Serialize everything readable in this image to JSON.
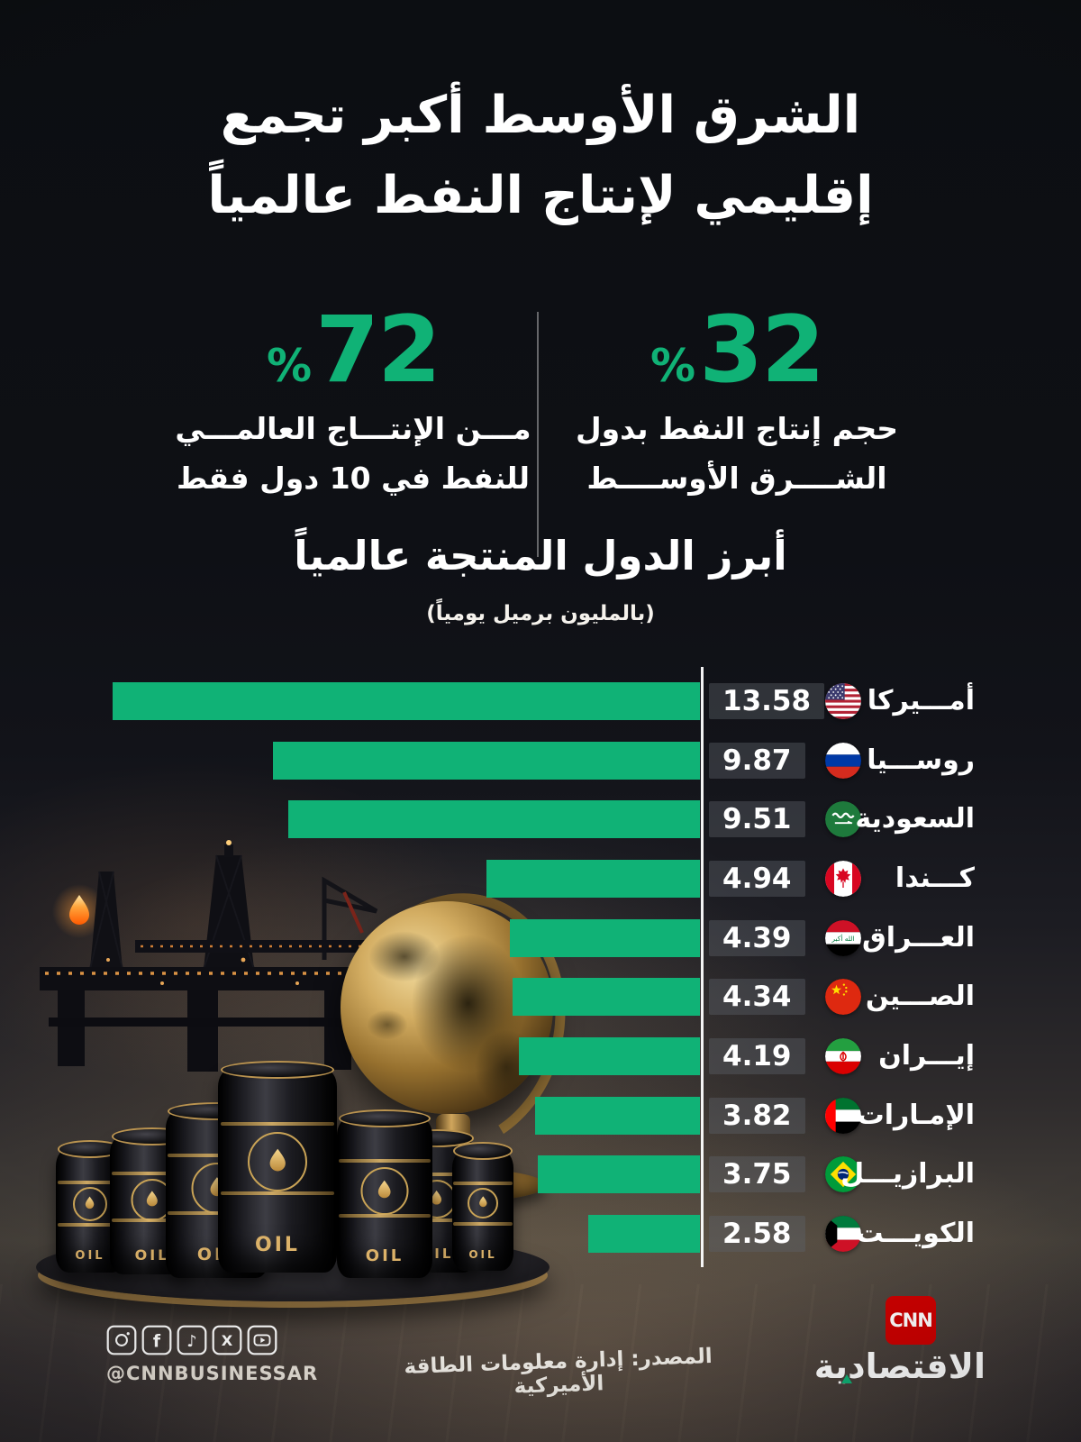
{
  "colors": {
    "accent_green": "#10b276",
    "cnn_red": "#cc0000",
    "axis_white": "#ffffff"
  },
  "title": {
    "line1": "الشرق الأوسط أكبر تجمع",
    "line2": "إقليمي لإنتاج النفط عالمياً"
  },
  "stats": {
    "top10": {
      "value": "72",
      "percent": "%",
      "line1": "مـــن الإنتـــاج العالمـــي",
      "line2": "للنفط في 10 دول فقط"
    },
    "middle_east": {
      "value": "32",
      "percent": "%",
      "line1": "حجم إنتاج النفط بدول",
      "line2": "الشــــرق الأوســــط"
    }
  },
  "chart": {
    "title": "أبرز الدول المنتجة عالمياً",
    "subtitle": "(بالمليون برميل يومياً)"
  },
  "chart_data": {
    "type": "bar",
    "orientation": "horizontal-rtl",
    "title": "أبرز الدول المنتجة عالمياً (بالمليون برميل يومياً)",
    "unit": "مليون برميل يومياً",
    "categories": [
      "أمـــيركا",
      "روســـيا",
      "السعودية",
      "كـــندا",
      "العـــراق",
      "الصـــين",
      "إيـــران",
      "الإمـارات",
      "البرازيـــل",
      "الكويـــت"
    ],
    "values": [
      13.58,
      9.87,
      9.51,
      4.94,
      4.39,
      4.34,
      4.19,
      3.82,
      3.75,
      2.58
    ],
    "flags": [
      "usa",
      "russia",
      "saudi-arabia",
      "canada",
      "iraq",
      "china",
      "iran",
      "uae",
      "brazil",
      "kuwait"
    ],
    "xlim": [
      0,
      13.58
    ],
    "grid": false,
    "bar_color": "#10b276",
    "value_labels": [
      "13.58",
      "9.87",
      "9.51",
      "4.94",
      "4.39",
      "4.34",
      "4.19",
      "3.82",
      "3.75",
      "2.58"
    ]
  },
  "scene": {
    "barrel_label": "OIL"
  },
  "footer": {
    "social_handle": "@CNNBUSINESSAR",
    "social_icons": [
      "instagram",
      "facebook",
      "tiktok",
      "x",
      "youtube"
    ],
    "source": "المصدر: إدارة معلومات الطاقة الأميركية",
    "brand": {
      "logo_text": "CNN",
      "name": "الاقتصادية"
    }
  }
}
